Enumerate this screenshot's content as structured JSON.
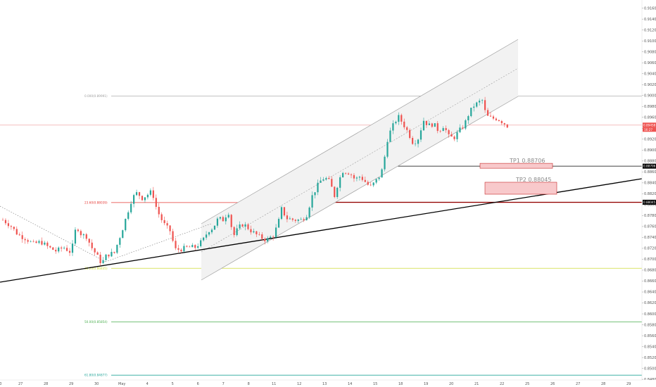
{
  "chart_data": {
    "type": "candlestick",
    "instrument_note": "",
    "y_axis": {
      "ticks": [
        "0.91600",
        "0.91400",
        "0.91200",
        "0.91000",
        "0.90800",
        "0.90600",
        "0.90400",
        "0.90200",
        "0.90000",
        "0.89800",
        "0.89600",
        "0.89400",
        "0.89200",
        "0.89000",
        "0.88800",
        "0.88600",
        "0.88400",
        "0.88200",
        "0.88000",
        "0.87800",
        "0.87600",
        "0.87400",
        "0.87200",
        "0.87000",
        "0.86800",
        "0.86600",
        "0.86400",
        "0.86200",
        "0.86000",
        "0.85800",
        "0.85600",
        "0.85400",
        "0.85200",
        "0.85000",
        "0.84800",
        "0.84700"
      ],
      "ylim": [
        0.8466,
        0.9175
      ]
    },
    "x_axis": {
      "ticks": [
        {
          "label": "2:00",
          "day": -0.2
        },
        {
          "label": "27",
          "day": 0.7
        },
        {
          "label": "28",
          "day": 1.7
        },
        {
          "label": "29",
          "day": 2.7
        },
        {
          "label": "30",
          "day": 3.7
        },
        {
          "label": "May",
          "day": 4.7
        },
        {
          "label": "4",
          "day": 5.7
        },
        {
          "label": "5",
          "day": 6.7
        },
        {
          "label": "6",
          "day": 7.7
        },
        {
          "label": "7",
          "day": 8.7
        },
        {
          "label": "8",
          "day": 9.7
        },
        {
          "label": "11",
          "day": 10.7
        },
        {
          "label": "12",
          "day": 11.7
        },
        {
          "label": "13",
          "day": 12.7
        },
        {
          "label": "14",
          "day": 13.7
        },
        {
          "label": "15",
          "day": 14.7
        },
        {
          "label": "18",
          "day": 15.7
        },
        {
          "label": "19",
          "day": 16.7
        },
        {
          "label": "20",
          "day": 17.7
        },
        {
          "label": "21",
          "day": 18.7
        },
        {
          "label": "22",
          "day": 19.7
        },
        {
          "label": "25",
          "day": 20.7
        },
        {
          "label": "26",
          "day": 21.7
        },
        {
          "label": "27",
          "day": 22.7
        },
        {
          "label": "28",
          "day": 23.7
        },
        {
          "label": "29",
          "day": 24.7
        }
      ]
    },
    "price_path": [
      [
        0.0,
        0.8772
      ],
      [
        0.3,
        0.8762
      ],
      [
        0.6,
        0.8745
      ],
      [
        0.9,
        0.8738
      ],
      [
        1.2,
        0.8728
      ],
      [
        1.5,
        0.8732
      ],
      [
        1.8,
        0.8722
      ],
      [
        2.1,
        0.8715
      ],
      [
        2.4,
        0.8722
      ],
      [
        2.7,
        0.8712
      ],
      [
        2.9,
        0.8762
      ],
      [
        3.1,
        0.8745
      ],
      [
        3.3,
        0.8742
      ],
      [
        3.5,
        0.8722
      ],
      [
        3.7,
        0.8708
      ],
      [
        3.9,
        0.8692
      ],
      [
        4.1,
        0.8708
      ],
      [
        4.4,
        0.8712
      ],
      [
        4.7,
        0.8752
      ],
      [
        4.9,
        0.8782
      ],
      [
        5.1,
        0.8812
      ],
      [
        5.3,
        0.8822
      ],
      [
        5.5,
        0.8812
      ],
      [
        5.7,
        0.8818
      ],
      [
        5.9,
        0.8825
      ],
      [
        6.0,
        0.8802
      ],
      [
        6.2,
        0.8778
      ],
      [
        6.4,
        0.8762
      ],
      [
        6.6,
        0.8752
      ],
      [
        6.8,
        0.8718
      ],
      [
        7.0,
        0.8718
      ],
      [
        7.3,
        0.8722
      ],
      [
        7.6,
        0.8722
      ],
      [
        7.9,
        0.8735
      ],
      [
        8.1,
        0.8752
      ],
      [
        8.3,
        0.8758
      ],
      [
        8.5,
        0.8775
      ],
      [
        8.7,
        0.8772
      ],
      [
        8.9,
        0.8788
      ],
      [
        9.1,
        0.8742
      ],
      [
        9.3,
        0.8758
      ],
      [
        9.5,
        0.8765
      ],
      [
        9.8,
        0.8752
      ],
      [
        10.1,
        0.8742
      ],
      [
        10.4,
        0.8735
      ],
      [
        10.7,
        0.8745
      ],
      [
        10.9,
        0.8772
      ],
      [
        11.0,
        0.8792
      ],
      [
        11.2,
        0.8775
      ],
      [
        11.5,
        0.8772
      ],
      [
        11.8,
        0.8772
      ],
      [
        12.0,
        0.8782
      ],
      [
        12.2,
        0.8815
      ],
      [
        12.5,
        0.8842
      ],
      [
        12.7,
        0.885
      ],
      [
        12.9,
        0.8842
      ],
      [
        13.1,
        0.8815
      ],
      [
        13.2,
        0.8835
      ],
      [
        13.4,
        0.8862
      ],
      [
        13.7,
        0.8858
      ],
      [
        13.9,
        0.8846
      ],
      [
        14.1,
        0.8852
      ],
      [
        14.3,
        0.8842
      ],
      [
        14.5,
        0.8832
      ],
      [
        14.7,
        0.8842
      ],
      [
        14.9,
        0.8855
      ],
      [
        15.0,
        0.8868
      ],
      [
        15.2,
        0.8925
      ],
      [
        15.4,
        0.8945
      ],
      [
        15.6,
        0.8962
      ],
      [
        15.8,
        0.8948
      ],
      [
        16.0,
        0.8932
      ],
      [
        16.2,
        0.8912
      ],
      [
        16.4,
        0.8922
      ],
      [
        16.6,
        0.8955
      ],
      [
        16.8,
        0.8945
      ],
      [
        17.0,
        0.8948
      ],
      [
        17.2,
        0.8935
      ],
      [
        17.4,
        0.8945
      ],
      [
        17.6,
        0.8925
      ],
      [
        17.8,
        0.8922
      ],
      [
        18.0,
        0.8935
      ],
      [
        18.2,
        0.8945
      ],
      [
        18.4,
        0.8968
      ],
      [
        18.6,
        0.8982
      ],
      [
        18.8,
        0.8988
      ],
      [
        18.9,
        0.8995
      ],
      [
        19.0,
        0.8975
      ],
      [
        19.1,
        0.8962
      ],
      [
        19.3,
        0.8958
      ],
      [
        19.5,
        0.8958
      ],
      [
        19.7,
        0.8952
      ],
      [
        19.9,
        0.8945
      ],
      [
        20.0,
        0.8938
      ]
    ],
    "last_price": "0.89458",
    "last_price_small": "16:27",
    "annotations": {
      "fib_1000": {
        "label": "0.000(0.89991)",
        "price": 0.89991
      },
      "fib_236": {
        "label": "23.60(0.88039)",
        "price": 0.88039
      },
      "fib_382": {
        "label": "38.20(0.86835)",
        "price": 0.86835
      },
      "fib_500": {
        "label": "50.00(0.85854)",
        "price": 0.85854
      },
      "fib_618": {
        "label": "61.80(0.84877)",
        "price": 0.84877
      },
      "tp1": {
        "label": "TP1 0.88706",
        "price": 0.88706,
        "axis_label": "0.88706"
      },
      "tp2": {
        "label": "TP2 0.88045",
        "price": 0.88045,
        "axis_label": "0.88045"
      }
    },
    "colors": {
      "up": "#26a69a",
      "down": "#ef5350",
      "channel": "#9e9e9e",
      "trend": "#000000",
      "fib_grey": "#9e9e9e",
      "fib_red": "#e53935",
      "fib_yellow": "#cddc39",
      "fib_green": "#4caf50",
      "fib_teal": "#26a69a",
      "tp_fill": "#f8c9cb",
      "tp_border": "#c62828",
      "price_line": "#ef9a9a",
      "price_tag": "#ef5350"
    },
    "grid": false,
    "legend": "none"
  }
}
